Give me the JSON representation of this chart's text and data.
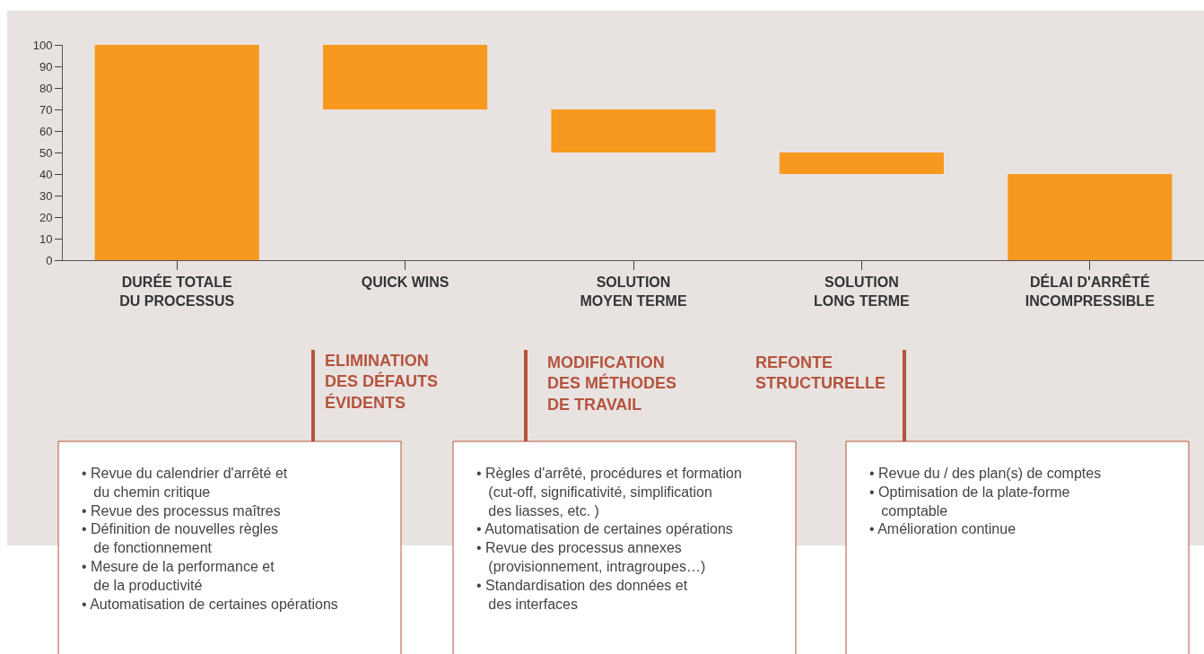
{
  "chart_data": {
    "type": "bar",
    "categories": [
      "DURÉE TOTALE\nDU PROCESSUS",
      "QUICK WINS",
      "SOLUTION\nMOYEN TERME",
      "SOLUTION\nLONG TERME",
      "DÉLAI D'ARRÊTÉ\nINCOMPRESSIBLE"
    ],
    "values": [
      100,
      30,
      20,
      10,
      40
    ],
    "base": [
      0,
      70,
      50,
      40,
      0
    ],
    "color": "#f7991f",
    "ylim": [
      0,
      100
    ],
    "yticks": [
      0,
      10,
      20,
      30,
      40,
      50,
      60,
      70,
      80,
      90,
      100
    ],
    "grid": false,
    "legend": false,
    "annotations": [
      "ELIMINATION\nDES DÉFAUTS\nÉVIDENTS",
      "MODIFICATION\nDES MÉTHODES\nDE TRAVAIL",
      "REFONTE\nSTRUCTURELLE",
      "• Revue du calendrier d'arrêté et\n   du chemin critique\n• Revue des processus maîtres\n• Définition de nouvelles règles\n   de fonctionnement\n• Mesure de la performance et\n   de la productivité\n• Automatisation de certaines opérations",
      "• Règles d'arrêté, procédures et formation\n   (cut-off, significativité, simplification\n   des liasses, etc. )\n• Automatisation de certaines opérations\n• Revue des processus annexes\n   (provisionnement, intragroupes…)\n• Standardisation des données et\n   des interfaces",
      "• Revue du / des plan(s) de comptes\n• Optimisation de la plate-forme\n   comptable\n• Amélioration continue"
    ]
  }
}
